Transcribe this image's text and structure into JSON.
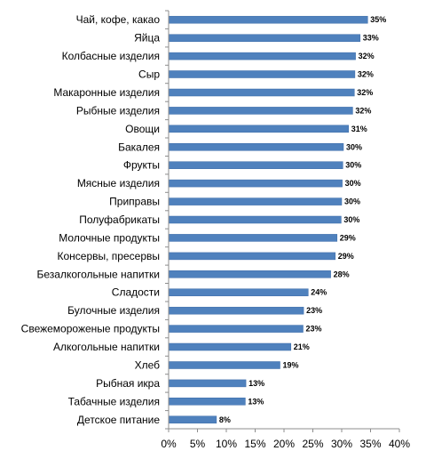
{
  "chart_data": {
    "type": "bar",
    "orientation": "horizontal",
    "categories": [
      "Чай, кофе, какао",
      "Яйца",
      "Колбасные изделия",
      "Сыр",
      "Макаронные изделия",
      "Рыбные изделия",
      "Овощи",
      "Бакалея",
      "Фрукты",
      "Мясные изделия",
      "Приправы",
      "Полуфабрикаты",
      "Молочные продукты",
      "Консервы, пресервы",
      "Безалкогольные напитки",
      "Сладости",
      "Булочные изделия",
      "Свежемороженые продукты",
      "Алкогольные напитки",
      "Хлеб",
      "Рыбная икра",
      "Табачные изделия",
      "Детское питание"
    ],
    "values": [
      34.5,
      33.2,
      32.4,
      32.3,
      32.2,
      31.9,
      31.2,
      30.3,
      30.2,
      30.1,
      30.0,
      29.9,
      29.2,
      28.9,
      28.1,
      24.2,
      23.4,
      23.3,
      21.2,
      19.3,
      13.4,
      13.3,
      8.3
    ],
    "data_labels": [
      "35%",
      "33%",
      "32%",
      "32%",
      "32%",
      "32%",
      "31%",
      "30%",
      "30%",
      "30%",
      "30%",
      "30%",
      "29%",
      "29%",
      "28%",
      "24%",
      "23%",
      "23%",
      "21%",
      "19%",
      "13%",
      "13%",
      "8%"
    ],
    "x_ticks": [
      "0%",
      "5%",
      "10%",
      "15%",
      "20%",
      "25%",
      "30%",
      "35%",
      "40%"
    ],
    "xlim": [
      0,
      40
    ],
    "grid": false,
    "legend": "none",
    "colors": {
      "bar": "#4f81bd",
      "bar_edge": "#3a6aa8",
      "axis": "#8c8c8c"
    }
  }
}
